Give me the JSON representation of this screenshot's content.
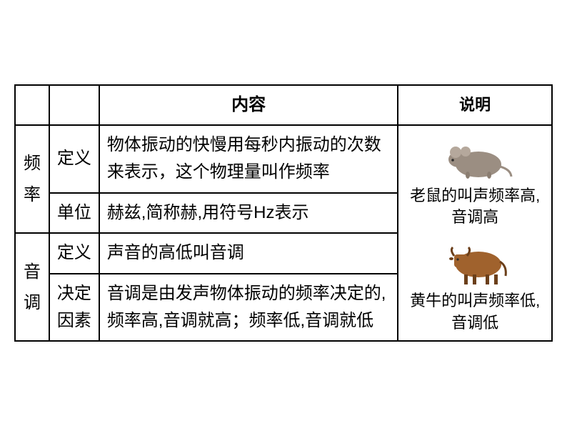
{
  "header": {
    "col1": "",
    "col2": "",
    "col3": "内容",
    "col4": "说明"
  },
  "rows": {
    "freq_label": "频率",
    "freq_def_label": "定义",
    "freq_def_text": "物体振动的快慢用每秒内振动的次数来表示，这个物理量叫作频率",
    "freq_unit_label": "单位",
    "freq_unit_text": "赫兹,简称赫,用符号Hz表示",
    "pitch_label": "音调",
    "pitch_def_label": "定义",
    "pitch_def_text": "声音的高低叫音调",
    "pitch_factor_label": "决定因素",
    "pitch_factor_text": "音调是由发声物体振动的频率决定的,频率高,音调就高；频率低,音调就低"
  },
  "explain": {
    "mouse_caption": "老鼠的叫声频率高,音调高",
    "cow_caption": "黄牛的叫声频率低,音调低"
  },
  "style": {
    "border_color": "#000000",
    "background": "#ffffff",
    "font_size_main": 24,
    "font_size_caption": 22,
    "mouse_body_color": "#9b8e82",
    "mouse_ear_color": "#b5a89c",
    "cow_body_color": "#a0622d",
    "cow_dark_color": "#6b3f1a"
  }
}
